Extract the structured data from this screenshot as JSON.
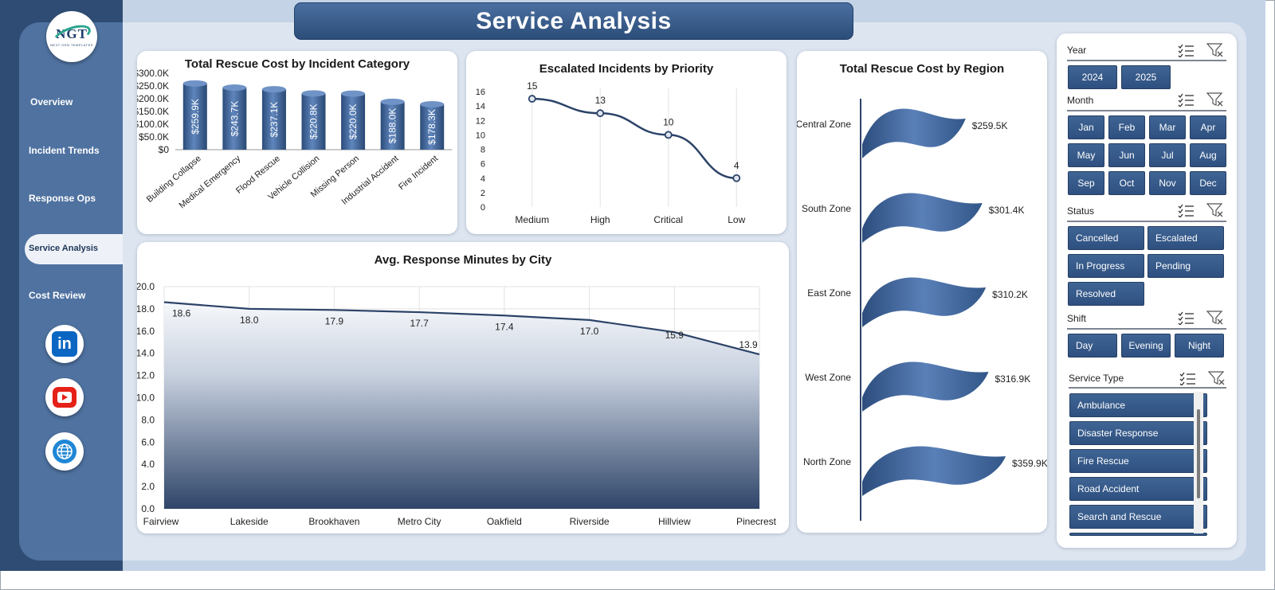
{
  "app": {
    "title": "Service Analysis",
    "logo_text": "NGT",
    "logo_subtext": "NEXT GEN TEMPLATES"
  },
  "sidebar": {
    "items": [
      {
        "label": "Overview",
        "active": false
      },
      {
        "label": "Incident Trends",
        "active": false
      },
      {
        "label": "Response Ops",
        "active": false
      },
      {
        "label": "Service Analysis",
        "active": true
      },
      {
        "label": "Cost Review",
        "active": false
      }
    ],
    "social": [
      "linkedin-icon",
      "youtube-icon",
      "globe-icon"
    ],
    "linkedin_text": "in"
  },
  "colors": {
    "accent": "#2f5383",
    "sidebar": "#4f72a0",
    "background": "#c4d3e6"
  },
  "chart_data": [
    {
      "type": "bar",
      "title": "Total Rescue Cost by Incident Category",
      "categories": [
        "Building Collapse",
        "Medical Emergency",
        "Flood Rescue",
        "Vehicle Collision",
        "Missing Person",
        "Industrial Accident",
        "Fire Incident"
      ],
      "values": [
        259900,
        243700,
        237100,
        220800,
        220000,
        188000,
        178300
      ],
      "data_labels": [
        "$259.9K",
        "$243.7K",
        "$237.1K",
        "$220.8K",
        "$220.0K",
        "$188.0K",
        "$178.3K"
      ],
      "y_ticks": [
        "$0",
        "$50.0K",
        "$100.0K",
        "$150.0K",
        "$200.0K",
        "$250.0K",
        "$300.0K"
      ],
      "ylim": [
        0,
        300000
      ]
    },
    {
      "type": "line",
      "title": "Escalated Incidents by Priority",
      "categories": [
        "Medium",
        "High",
        "Critical",
        "Low"
      ],
      "values": [
        15,
        13,
        10,
        4
      ],
      "y_ticks": [
        "0",
        "2",
        "4",
        "6",
        "8",
        "10",
        "12",
        "14",
        "16"
      ],
      "ylim": [
        0,
        16
      ]
    },
    {
      "type": "area",
      "title": "Avg. Response Minutes by City",
      "categories": [
        "Fairview",
        "Lakeside",
        "Brookhaven",
        "Metro City",
        "Oakfield",
        "Riverside",
        "Hillview",
        "Pinecrest"
      ],
      "values": [
        18.6,
        18.0,
        17.9,
        17.7,
        17.4,
        17.0,
        15.9,
        13.9
      ],
      "data_labels": [
        "18.6",
        "18.0",
        "17.9",
        "17.7",
        "17.4",
        "17.0",
        "15.9",
        "13.9"
      ],
      "y_ticks": [
        "0.0",
        "2.0",
        "4.0",
        "6.0",
        "8.0",
        "10.0",
        "12.0",
        "14.0",
        "16.0",
        "18.0",
        "20.0"
      ],
      "ylim": [
        0,
        20
      ]
    },
    {
      "type": "bar",
      "title": "Total Rescue Cost by Region",
      "categories": [
        "Central Zone",
        "South Zone",
        "East Zone",
        "West Zone",
        "North Zone"
      ],
      "values": [
        259500,
        301400,
        310200,
        316900,
        359900
      ],
      "data_labels": [
        "$259.5K",
        "$301.4K",
        "$310.2K",
        "$316.9K",
        "$359.9K"
      ]
    }
  ],
  "slicers": {
    "year": {
      "title": "Year",
      "options": [
        "2024",
        "2025"
      ]
    },
    "month": {
      "title": "Month",
      "options": [
        "Jan",
        "Feb",
        "Mar",
        "Apr",
        "May",
        "Jun",
        "Jul",
        "Aug",
        "Sep",
        "Oct",
        "Nov",
        "Dec"
      ]
    },
    "status": {
      "title": "Status",
      "options": [
        "Cancelled",
        "Escalated",
        "In Progress",
        "Pending",
        "Resolved"
      ]
    },
    "shift": {
      "title": "Shift",
      "options": [
        "Day",
        "Evening",
        "Night"
      ]
    },
    "service_type": {
      "title": "Service Type",
      "options": [
        "Ambulance",
        "Disaster Response",
        "Fire Rescue",
        "Road Accident",
        "Search and Rescue"
      ]
    }
  }
}
